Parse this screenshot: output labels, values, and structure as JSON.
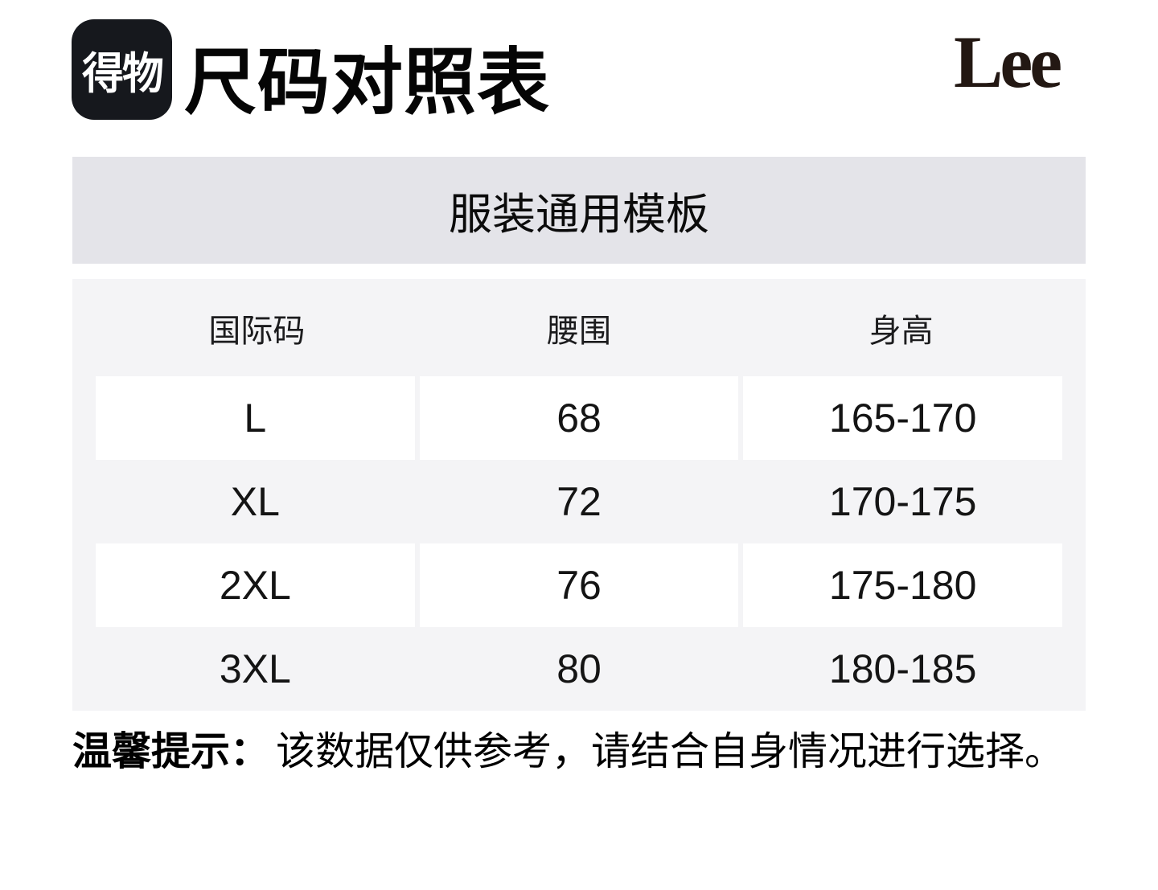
{
  "header": {
    "logo_text": "得物",
    "title": "尺码对照表",
    "brand": "Lee"
  },
  "banner": {
    "label": "服装通用模板"
  },
  "size_table": {
    "columns": [
      "国际码",
      "腰围",
      "身高"
    ],
    "rows": [
      [
        "L",
        "68",
        "165-170"
      ],
      [
        "XL",
        "72",
        "170-175"
      ],
      [
        "2XL",
        "76",
        "175-180"
      ],
      [
        "3XL",
        "80",
        "180-185"
      ]
    ]
  },
  "footer": {
    "notice_label": "温馨提示：",
    "notice_text": "该数据仅供参考，请结合自身情况进行选择。"
  },
  "colors": {
    "banner_bg": "#E4E4E9",
    "table_bg": "#F4F4F6",
    "cell_bg": "#FFFFFF",
    "logo_bg": "#16181D",
    "brand_text": "#231813"
  }
}
